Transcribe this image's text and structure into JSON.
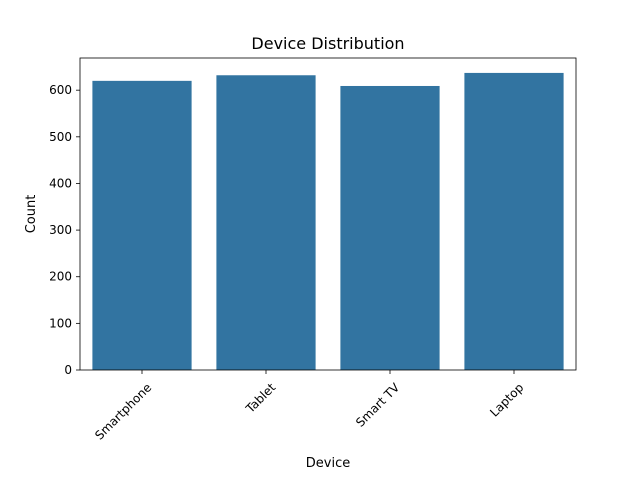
{
  "chart_data": {
    "type": "bar",
    "title": "Device Distribution",
    "xlabel": "Device",
    "ylabel": "Count",
    "categories": [
      "Smartphone",
      "Tablet",
      "Smart TV",
      "Laptop"
    ],
    "values": [
      620,
      632,
      609,
      637
    ],
    "ylim": [
      0,
      669
    ],
    "yticks": [
      0,
      100,
      200,
      300,
      400,
      500,
      600
    ],
    "xtick_rotation_deg": 45,
    "grid": false,
    "legend": "none",
    "bar_color": "#3274a1"
  }
}
